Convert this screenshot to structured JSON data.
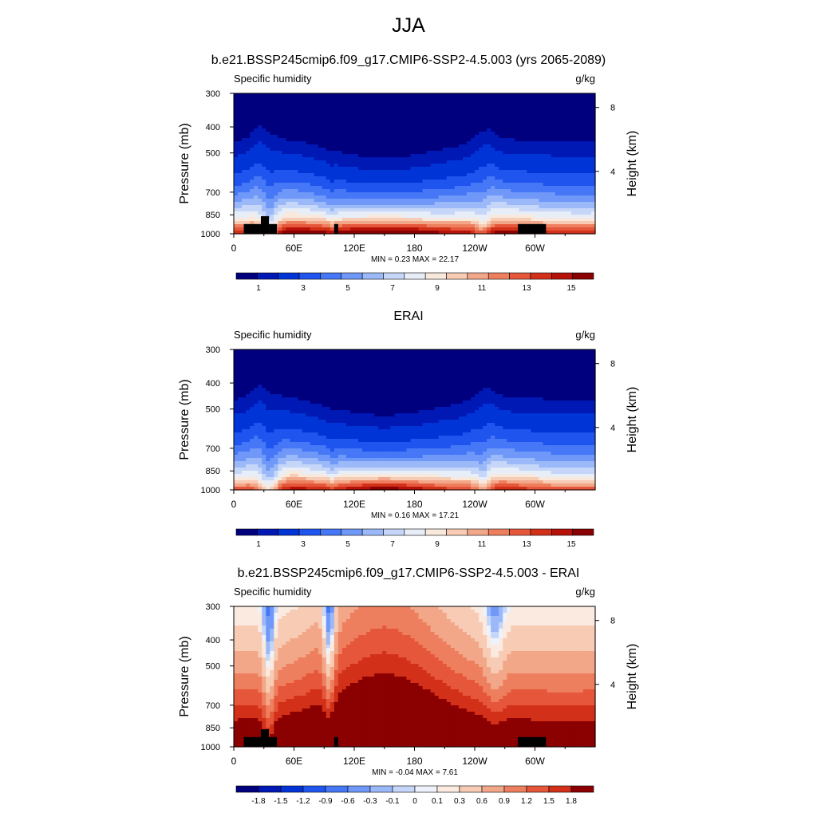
{
  "figure_title": "JJA",
  "chart_data": [
    {
      "type": "heatmap",
      "title": "b.e21.BSSP245cmip6.f09_g17.CMIP6-SSP2-4.5.003 (yrs 2065-2089)",
      "left_label": "Specific humidity",
      "right_label": "g/kg",
      "ylabel": "Pressure (mb)",
      "ylabel_right": "Height (km)",
      "xticks": [
        "0",
        "60E",
        "120E",
        "180",
        "120W",
        "60W"
      ],
      "yticks": [
        "300",
        "400",
        "500",
        "700",
        "850",
        "1000"
      ],
      "yticks_right": [
        "8",
        "4"
      ],
      "stats": "MIN =   0.23  MAX =  22.17",
      "colorbar_labels": [
        "1",
        "3",
        "5",
        "7",
        "9",
        "11",
        "13",
        "15"
      ],
      "colorbar_levels": [
        0.5,
        1,
        2,
        3,
        4,
        5,
        6,
        7,
        8,
        9,
        10,
        11,
        12,
        13,
        14,
        15
      ],
      "range": [
        0.23,
        22.17
      ],
      "topography_masked": true
    },
    {
      "type": "heatmap",
      "title": "ERAI",
      "left_label": "Specific humidity",
      "right_label": "g/kg",
      "ylabel": "Pressure (mb)",
      "ylabel_right": "Height (km)",
      "xticks": [
        "0",
        "60E",
        "120E",
        "180",
        "120W",
        "60W"
      ],
      "yticks": [
        "300",
        "400",
        "500",
        "700",
        "850",
        "1000"
      ],
      "yticks_right": [
        "8",
        "4"
      ],
      "stats": "MIN =   0.16  MAX =  17.21",
      "colorbar_labels": [
        "1",
        "3",
        "5",
        "7",
        "9",
        "11",
        "13",
        "15"
      ],
      "colorbar_levels": [
        0.5,
        1,
        2,
        3,
        4,
        5,
        6,
        7,
        8,
        9,
        10,
        11,
        12,
        13,
        14,
        15
      ],
      "range": [
        0.16,
        17.21
      ],
      "topography_masked": false
    },
    {
      "type": "heatmap",
      "title": "b.e21.BSSP245cmip6.f09_g17.CMIP6-SSP2-4.5.003 - ERAI",
      "left_label": "Specific humidity",
      "right_label": "g/kg",
      "ylabel": "Pressure (mb)",
      "ylabel_right": "Height (km)",
      "xticks": [
        "0",
        "60E",
        "120E",
        "180",
        "120W",
        "60W"
      ],
      "yticks": [
        "300",
        "400",
        "500",
        "700",
        "850",
        "1000"
      ],
      "yticks_right": [
        "8",
        "4"
      ],
      "stats": "MIN =  -0.04  MAX =   7.61",
      "colorbar_labels": [
        "-1.8",
        "-1.5",
        "-1.2",
        "-0.9",
        "-0.6",
        "-0.3",
        "-0.1",
        "0",
        "0.1",
        "0.3",
        "0.6",
        "0.9",
        "1.2",
        "1.5",
        "1.8"
      ],
      "colorbar_levels": [
        -1.8,
        -1.5,
        -1.2,
        -0.9,
        -0.6,
        -0.3,
        -0.1,
        0,
        0.1,
        0.3,
        0.6,
        0.9,
        1.2,
        1.5,
        1.8
      ],
      "range": [
        -0.04,
        7.61
      ],
      "topography_masked": true
    }
  ],
  "colors": {
    "sequential": [
      "#00007f",
      "#0018b4",
      "#0034d6",
      "#1f55ee",
      "#4577f6",
      "#6f98f8",
      "#9bb9f8",
      "#c5d6f8",
      "#e8eef8",
      "#f9e8dc",
      "#f7cbb4",
      "#f3a789",
      "#ee7f5e",
      "#e5563a",
      "#d23018",
      "#b71209",
      "#8b0000"
    ],
    "diverging": [
      "#00007f",
      "#0018b4",
      "#0034d6",
      "#1f55ee",
      "#4577f6",
      "#6f98f8",
      "#9bb9f8",
      "#c5d6f8",
      "#eef3fb",
      "#fbeadf",
      "#f7cbb4",
      "#f3a789",
      "#ee7f5e",
      "#e5563a",
      "#d23018",
      "#8b0000"
    ],
    "mask": "#000000"
  }
}
